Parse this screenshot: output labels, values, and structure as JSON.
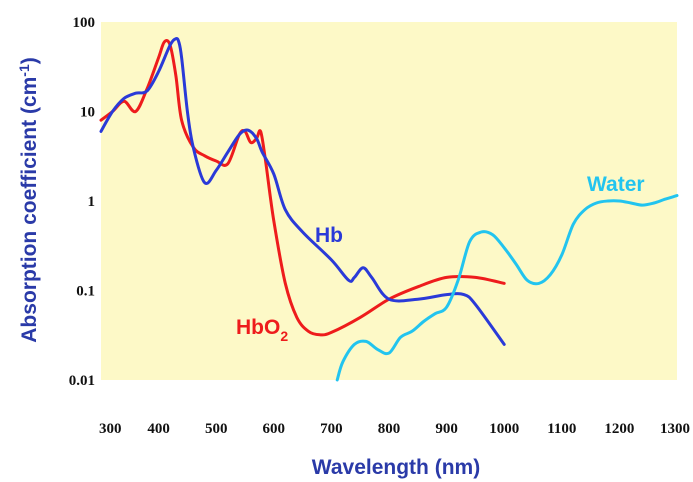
{
  "chart_data": {
    "type": "line",
    "xlabel": "Wavelength (nm)",
    "ylabel": "Absorption coefficient (cm",
    "ylabel_superscript": "-1",
    "ylabel_close": ")",
    "xlim": [
      300,
      1300
    ],
    "ylim": [
      0.01,
      100
    ],
    "y_scale": "log",
    "x_ticks": [
      "300",
      "400",
      "500",
      "600",
      "700",
      "800",
      "900",
      "1000",
      "1100",
      "1200",
      "1300"
    ],
    "y_ticks": [
      "0.01",
      "0.1",
      "1",
      "10",
      "100"
    ],
    "grid": false,
    "colors": {
      "plot_background": "#fdf9c7",
      "axis_title": "#2a3aa8",
      "tick_label": "#111111"
    },
    "series": [
      {
        "name": "HbO",
        "label_subscript": "2",
        "color": "#ee1c1c",
        "x": [
          300,
          320,
          340,
          360,
          380,
          400,
          410,
          420,
          430,
          440,
          460,
          480,
          500,
          520,
          540,
          550,
          560,
          570,
          577,
          585,
          600,
          620,
          640,
          660,
          680,
          700,
          750,
          800,
          850,
          900,
          950,
          1000
        ],
        "y": [
          8,
          10,
          13,
          10,
          18,
          40,
          60,
          55,
          25,
          8,
          4,
          3.2,
          2.8,
          2.6,
          5.5,
          6,
          4.5,
          5,
          6,
          3,
          0.6,
          0.12,
          0.05,
          0.035,
          0.032,
          0.034,
          0.05,
          0.08,
          0.11,
          0.14,
          0.14,
          0.12
        ]
      },
      {
        "name": "Hb",
        "color": "#2a3ad8",
        "x": [
          300,
          320,
          340,
          360,
          380,
          400,
          420,
          430,
          435,
          440,
          450,
          460,
          480,
          500,
          520,
          540,
          555,
          570,
          580,
          600,
          620,
          650,
          700,
          730,
          740,
          755,
          770,
          800,
          850,
          900,
          930,
          950,
          1000
        ],
        "y": [
          6,
          10,
          14,
          16,
          17,
          28,
          55,
          65,
          60,
          40,
          10,
          4,
          1.6,
          2.2,
          3.5,
          5.5,
          6.2,
          5,
          3.5,
          2,
          0.8,
          0.45,
          0.22,
          0.13,
          0.14,
          0.18,
          0.14,
          0.08,
          0.08,
          0.09,
          0.09,
          0.07,
          0.025
        ]
      },
      {
        "name": "Water",
        "color": "#22c4ef",
        "x": [
          710,
          720,
          740,
          760,
          780,
          800,
          820,
          840,
          860,
          880,
          900,
          920,
          940,
          960,
          980,
          1000,
          1020,
          1040,
          1060,
          1080,
          1100,
          1120,
          1140,
          1160,
          1180,
          1200,
          1220,
          1240,
          1260,
          1280,
          1300
        ],
        "y": [
          0.01,
          0.016,
          0.025,
          0.027,
          0.022,
          0.02,
          0.03,
          0.035,
          0.045,
          0.055,
          0.065,
          0.13,
          0.35,
          0.45,
          0.42,
          0.3,
          0.2,
          0.13,
          0.12,
          0.15,
          0.25,
          0.55,
          0.8,
          0.95,
          1.0,
          1.0,
          0.95,
          0.9,
          0.95,
          1.05,
          1.15
        ]
      }
    ],
    "labels": [
      {
        "text": "Water",
        "series": "Water"
      },
      {
        "text": "Hb",
        "series": "Hb"
      },
      {
        "text": "HbO",
        "series": "HbO"
      }
    ]
  }
}
